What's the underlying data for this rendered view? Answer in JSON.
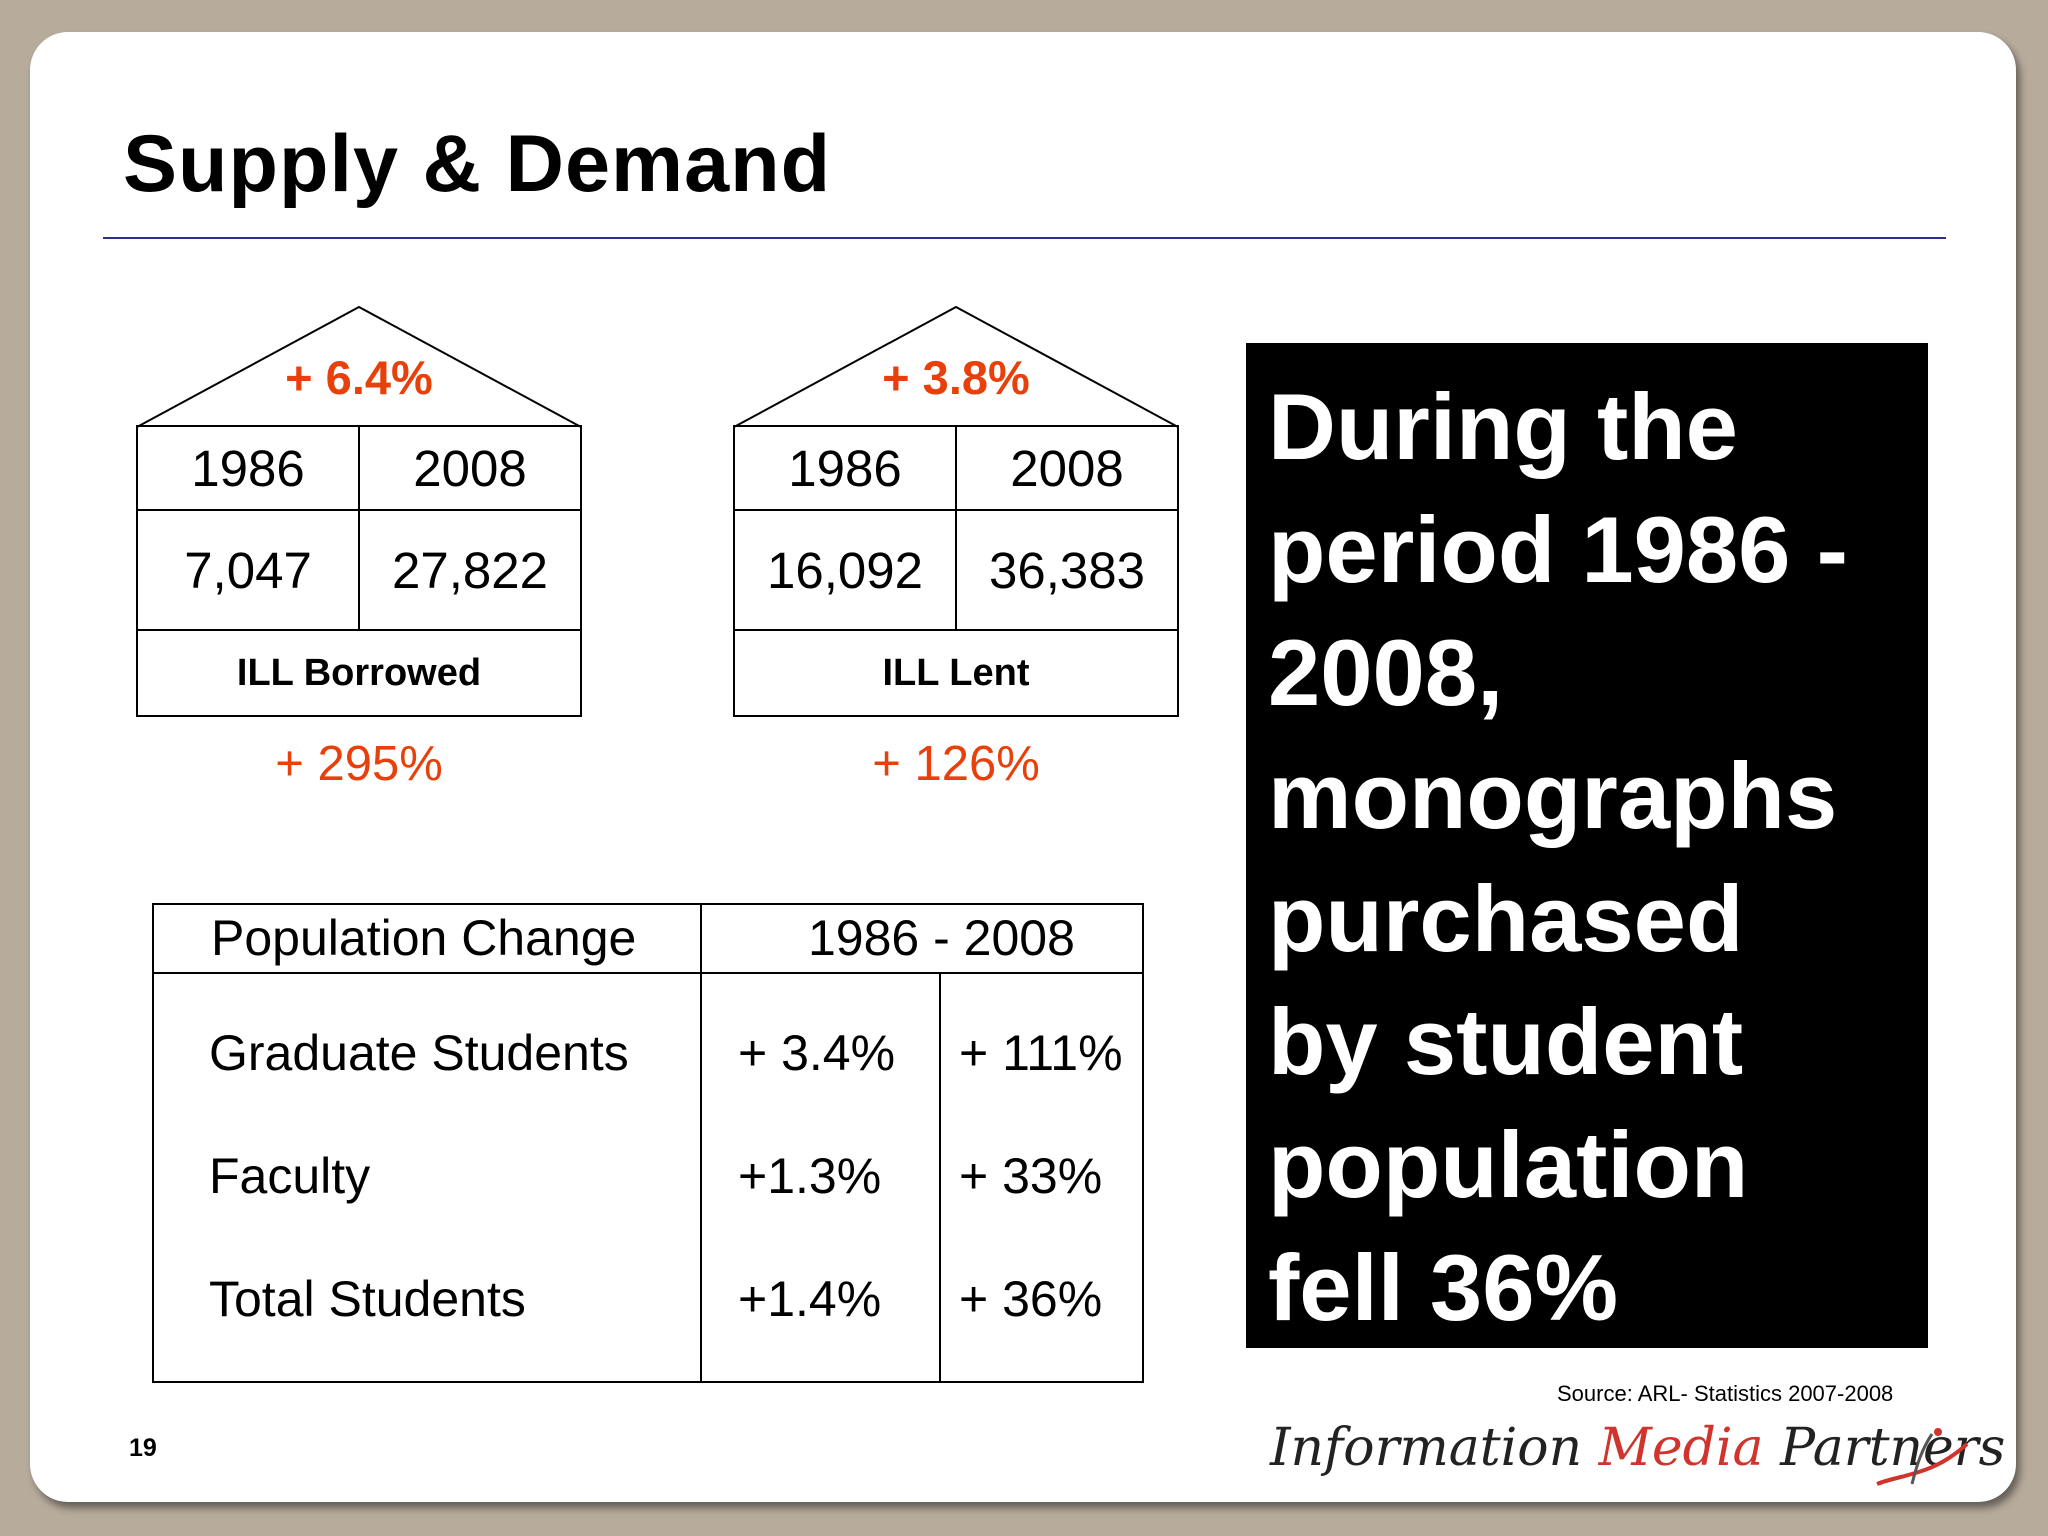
{
  "slide": {
    "title": "Supply & Demand",
    "page_number": "19",
    "source": "Source: ARL- Statistics 2007-2008"
  },
  "borrowed": {
    "top_pct": "+ 6.4%",
    "year_a": "1986",
    "year_b": "2008",
    "value_a": "7,047",
    "value_b": "27,822",
    "label": "ILL Borrowed",
    "bottom_pct": "+ 295%"
  },
  "lent": {
    "top_pct": "+ 3.8%",
    "year_a": "1986",
    "year_b": "2008",
    "value_a": "16,092",
    "value_b": "36,383",
    "label": "ILL Lent",
    "bottom_pct": "+ 126%"
  },
  "population": {
    "header_left": "Population Change",
    "header_right": "1986 - 2008",
    "rows": [
      {
        "label": "Graduate Students",
        "a": "+ 3.4%",
        "b": "+ 111%"
      },
      {
        "label": "Faculty",
        "a": "+1.3%",
        "b": "+ 33%"
      },
      {
        "label": "Total Students",
        "a": "+1.4%",
        "b": "+ 36%"
      }
    ]
  },
  "callout": {
    "lines": [
      "During the",
      "period 1986 -",
      "2008,",
      "monographs",
      "purchased",
      "by student",
      "population",
      "fell 36%"
    ]
  },
  "logo": {
    "word1": "Information",
    "word2": "Media",
    "word3": "Partners"
  }
}
